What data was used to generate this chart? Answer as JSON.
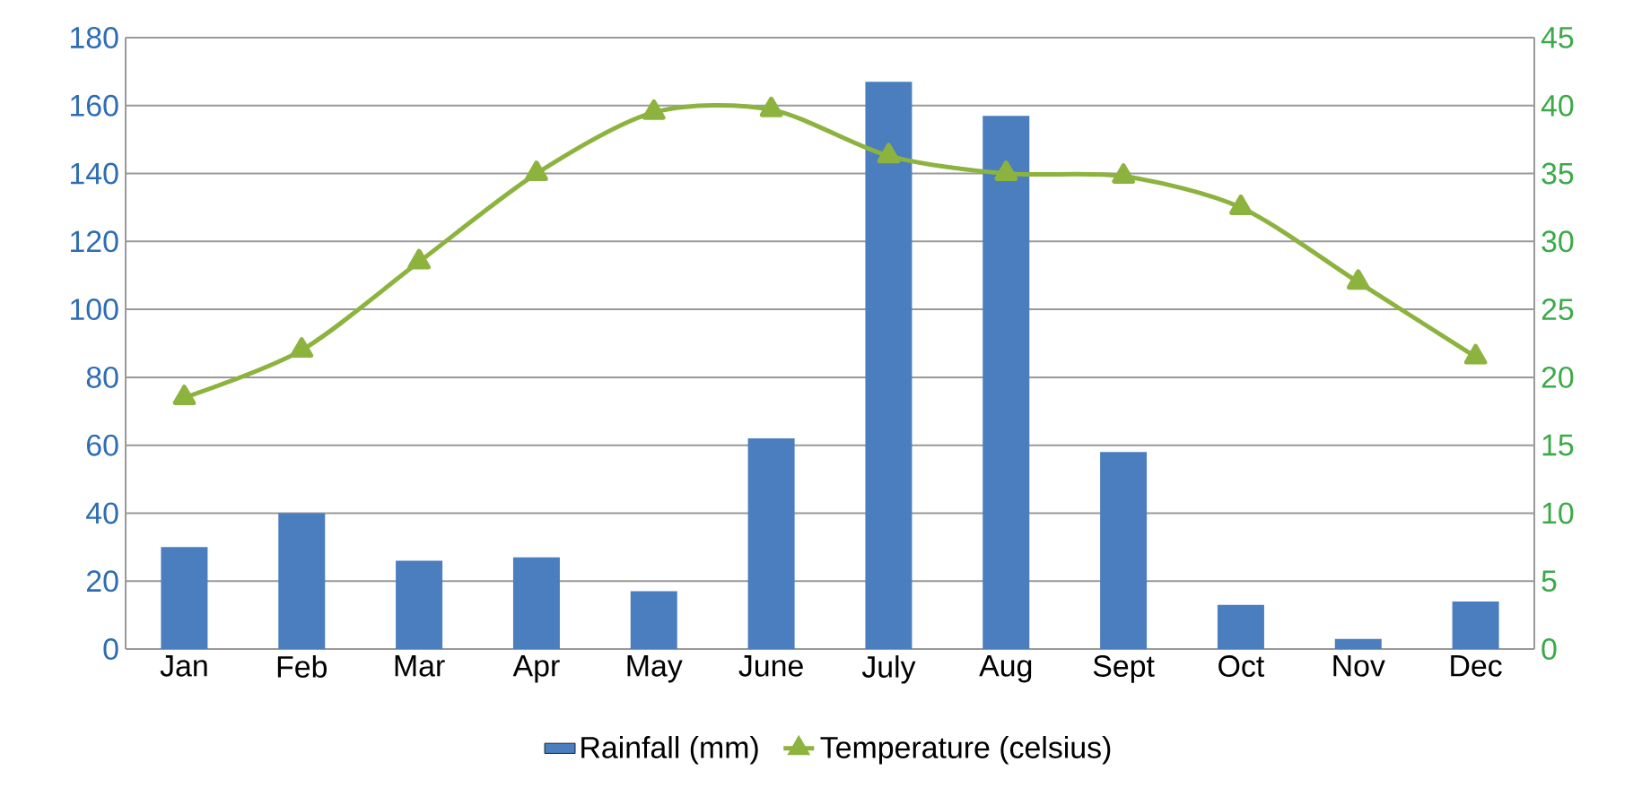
{
  "chart_data": {
    "type": "bar",
    "categories": [
      "Jan",
      "Feb",
      "Mar",
      "Apr",
      "May",
      "June",
      "July",
      "Aug",
      "Sept",
      "Oct",
      "Nov",
      "Dec"
    ],
    "series": [
      {
        "name": "Rainfall (mm)",
        "color": "#4a7ebf",
        "values": [
          30,
          40,
          26,
          27,
          17,
          62,
          167,
          157,
          58,
          13,
          3,
          14
        ]
      },
      {
        "name": "Temperature (celsius)",
        "type": "line",
        "axis": "y2",
        "color": "#8db33f",
        "marker": "triangle",
        "values": [
          18.5,
          22,
          28.5,
          35,
          39.5,
          39.7,
          36.3,
          35,
          34.8,
          32.5,
          27,
          21.5
        ]
      }
    ],
    "ylim": [
      0,
      180
    ],
    "yticks": [
      0,
      20,
      40,
      60,
      80,
      100,
      120,
      140,
      160,
      180
    ],
    "y2lim": [
      0,
      45
    ],
    "y2ticks": [
      0,
      5,
      10,
      15,
      20,
      25,
      30,
      35,
      40,
      45
    ],
    "grid": "y",
    "legend": "bottom"
  }
}
